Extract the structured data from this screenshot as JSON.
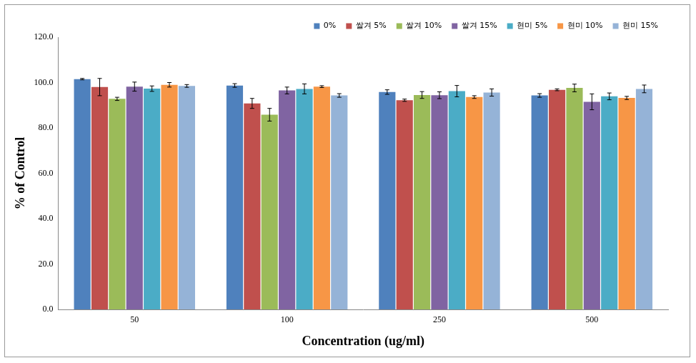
{
  "chart_data": {
    "type": "bar",
    "x_label": "Concentration (ug/ml)",
    "y_label": "% of Control",
    "categories": [
      "50",
      "100",
      "250",
      "500"
    ],
    "series": [
      {
        "name": "0%",
        "color": "#4F81BD",
        "values": [
          101.5,
          98.7,
          95.8,
          94.3
        ],
        "errors": [
          0.3,
          0.8,
          1.0,
          0.8
        ]
      },
      {
        "name": "쌀겨 5%",
        "color": "#C0504D",
        "values": [
          98.0,
          90.8,
          92.2,
          96.8
        ],
        "errors": [
          3.8,
          2.2,
          0.5,
          0.4
        ]
      },
      {
        "name": "쌀겨 10%",
        "color": "#9BBB59",
        "values": [
          92.8,
          85.8,
          94.5,
          97.6
        ],
        "errors": [
          0.7,
          2.8,
          1.5,
          1.7
        ]
      },
      {
        "name": "쌀겨 15%",
        "color": "#8064A2",
        "values": [
          98.2,
          96.5,
          94.4,
          91.5
        ],
        "errors": [
          2.0,
          1.5,
          1.5,
          3.5
        ]
      },
      {
        "name": "현미 5%",
        "color": "#4BACC6",
        "values": [
          97.3,
          97.2,
          96.2,
          93.9
        ],
        "errors": [
          1.2,
          2.2,
          2.5,
          1.5
        ]
      },
      {
        "name": "현미 10%",
        "color": "#F79646",
        "values": [
          99.0,
          98.2,
          93.6,
          93.2
        ],
        "errors": [
          1.0,
          0.4,
          0.6,
          0.7
        ]
      },
      {
        "name": "현미 15%",
        "color": "#95B3D7",
        "values": [
          98.5,
          94.3,
          95.6,
          97.2
        ],
        "errors": [
          0.6,
          0.8,
          1.6,
          1.7
        ]
      }
    ],
    "ylim": [
      0,
      120
    ],
    "yticks": [
      {
        "value": 0,
        "label": "0.0"
      },
      {
        "value": 20,
        "label": "20.0"
      },
      {
        "value": 40,
        "label": "40.0"
      },
      {
        "value": 60,
        "label": "60.0"
      },
      {
        "value": 80,
        "label": "80.0"
      },
      {
        "value": 100,
        "label": "100.0"
      },
      {
        "value": 120,
        "label": "120.0"
      }
    ],
    "grid": false,
    "legend": "top-right"
  }
}
